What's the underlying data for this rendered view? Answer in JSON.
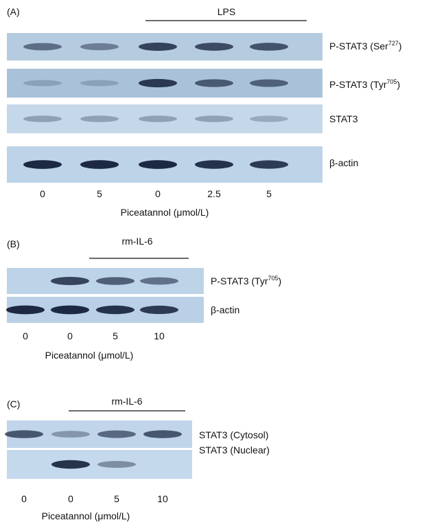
{
  "panels": [
    {
      "label": "(A)",
      "treatment": "LPS",
      "blots": [
        {
          "name": "P-STAT3  (Ser",
          "sup": "727",
          "suffix": ")"
        },
        {
          "name": "P-STAT3  (Tyr",
          "sup": "705",
          "suffix": ")"
        },
        {
          "name": "STAT3"
        },
        {
          "name": "β-actin"
        }
      ],
      "doses": [
        0,
        5,
        0,
        2.5,
        5
      ],
      "axis_label": "Piceatannol  (μmol/L)"
    },
    {
      "label": "(B)",
      "treatment": "rm-IL-6",
      "blots": [
        {
          "name": "P-STAT3  (Tyr",
          "sup": "705",
          "suffix": ")"
        },
        {
          "name": "β-actin"
        }
      ],
      "doses": [
        0,
        0,
        5,
        10
      ],
      "axis_label": "Piceatannol  (μmol/L)"
    },
    {
      "label": "(C)",
      "treatment": "rm-IL-6",
      "blots": [
        {
          "name": "STAT3  (Cytosol)"
        },
        {
          "name": "STAT3  (Nuclear)"
        }
      ],
      "doses": [
        0,
        0,
        5,
        10
      ],
      "axis_label": "Piceatannol  (μmol/L)"
    }
  ]
}
